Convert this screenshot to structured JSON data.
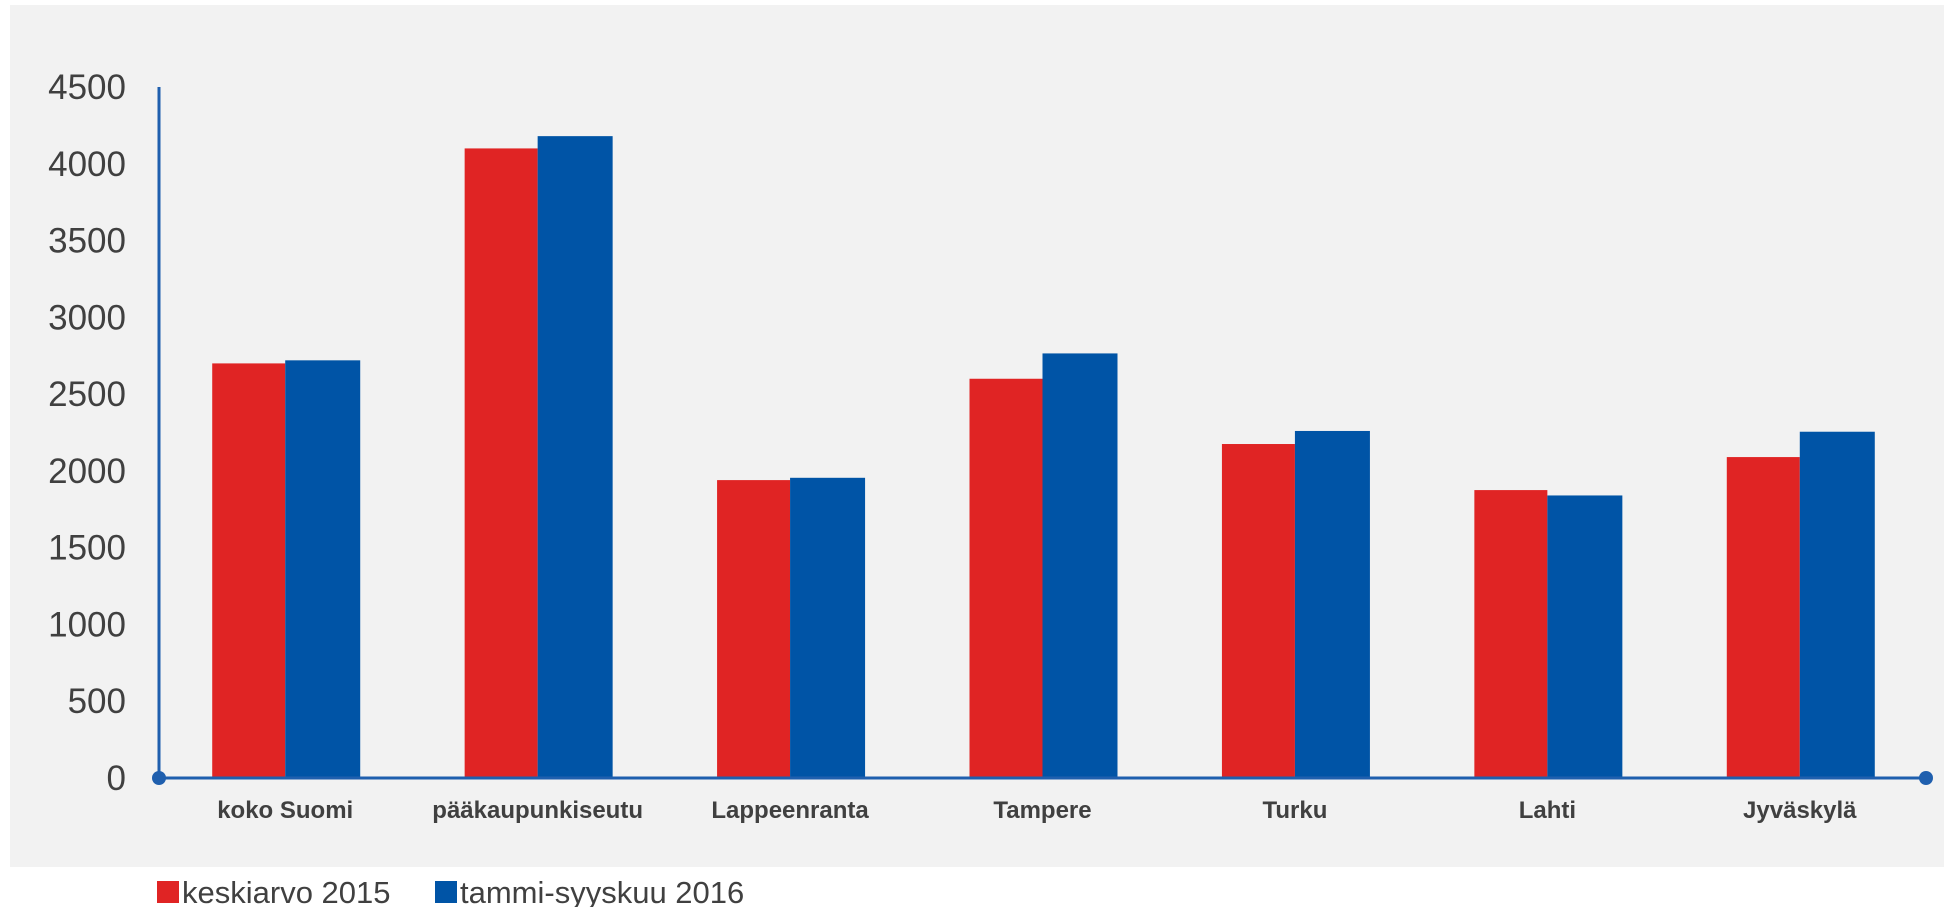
{
  "chart_data": {
    "type": "bar",
    "categories": [
      "koko Suomi",
      "pääkaupunkiseutu",
      "Lappeenranta",
      "Tampere",
      "Turku",
      "Lahti",
      "Jyväskylä"
    ],
    "series": [
      {
        "name": "keskiarvo 2015",
        "color": "#e02424",
        "values": [
          2700,
          4100,
          1940,
          2600,
          2175,
          1875,
          2090
        ]
      },
      {
        "name": "tammi-syyskuu 2016",
        "color": "#0054a6",
        "values": [
          2720,
          4180,
          1955,
          2765,
          2260,
          1840,
          2255
        ]
      }
    ],
    "yticks": [
      0,
      500,
      1000,
      1500,
      2000,
      2500,
      3000,
      3500,
      4000,
      4500
    ],
    "ylim": [
      0,
      4500
    ],
    "grid": false,
    "legend_position": "bottom-left",
    "background": "#f2f2f2",
    "axis_color": "#1f5fae"
  }
}
